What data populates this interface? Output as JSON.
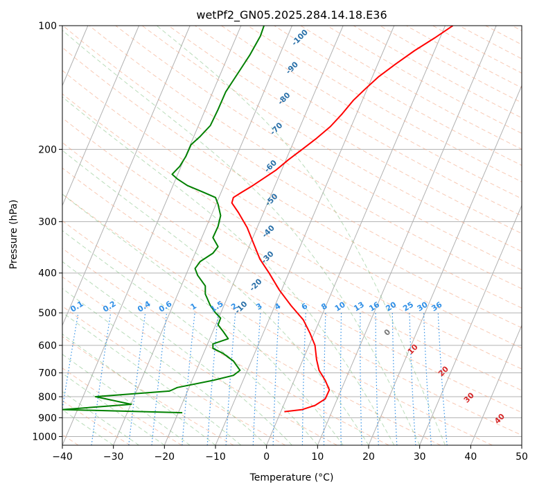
{
  "chart_data": {
    "type": "line",
    "title": "wetPf2_GN05.2025.284.14.18.E36",
    "xlabel": "Temperature (°C)",
    "ylabel": "Pressure (hPa)",
    "xlim": [
      -40,
      50
    ],
    "ylim": [
      1050,
      100
    ],
    "y_scale": "log",
    "grid": true,
    "x_ticks": [
      -40,
      -30,
      -20,
      -10,
      0,
      10,
      20,
      30,
      40,
      50
    ],
    "x_tick_labels": [
      "−40",
      "−30",
      "−20",
      "−10",
      "0",
      "10",
      "20",
      "30",
      "40",
      "50"
    ],
    "y_ticks": [
      100,
      200,
      300,
      400,
      500,
      600,
      700,
      800,
      900,
      1000
    ],
    "y_tick_labels": [
      "100",
      "200",
      "300",
      "400",
      "500",
      "600",
      "700",
      "800",
      "900",
      "1000"
    ],
    "series": [
      {
        "role": "temperature",
        "color": "#ff0000",
        "points": [
          [
            3.5,
            870
          ],
          [
            7,
            860
          ],
          [
            9.5,
            840
          ],
          [
            11.5,
            810
          ],
          [
            12.3,
            770
          ],
          [
            11.5,
            730
          ],
          [
            10.3,
            690
          ],
          [
            9.8,
            650
          ],
          [
            9.5,
            600
          ],
          [
            8.5,
            560
          ],
          [
            7.2,
            520
          ],
          [
            4.8,
            480
          ],
          [
            2.5,
            440
          ],
          [
            0.5,
            400
          ],
          [
            -1.3,
            370
          ],
          [
            -2.5,
            340
          ],
          [
            -3.8,
            310
          ],
          [
            -5.5,
            285
          ],
          [
            -6.8,
            270
          ],
          [
            -6.5,
            262
          ],
          [
            -5,
            255
          ],
          [
            -2.7,
            245
          ],
          [
            -0.5,
            235
          ],
          [
            1.8,
            225
          ],
          [
            4.3,
            212
          ],
          [
            7,
            200
          ],
          [
            9.8,
            188
          ],
          [
            12.5,
            176
          ],
          [
            14.8,
            164
          ],
          [
            17,
            152
          ],
          [
            19.5,
            142
          ],
          [
            22,
            133
          ],
          [
            25.3,
            124
          ],
          [
            29,
            115
          ],
          [
            33,
            107
          ],
          [
            36.5,
            100
          ]
        ]
      },
      {
        "role": "dewpoint",
        "color": "#008000",
        "points": [
          [
            -16.5,
            875
          ],
          [
            -40,
            860
          ],
          [
            -26.5,
            835
          ],
          [
            -33.5,
            800
          ],
          [
            -19,
            775
          ],
          [
            -17.5,
            760
          ],
          [
            -10.5,
            730
          ],
          [
            -6.5,
            710
          ],
          [
            -5.2,
            690
          ],
          [
            -6.5,
            655
          ],
          [
            -8.5,
            628
          ],
          [
            -10.5,
            610
          ],
          [
            -10.5,
            595
          ],
          [
            -7.5,
            578
          ],
          [
            -8.5,
            555
          ],
          [
            -9.5,
            535
          ],
          [
            -9,
            515
          ],
          [
            -10,
            500
          ],
          [
            -11,
            480
          ],
          [
            -12,
            450
          ],
          [
            -12,
            430
          ],
          [
            -13.5,
            405
          ],
          [
            -14,
            390
          ],
          [
            -13,
            375
          ],
          [
            -10.5,
            358
          ],
          [
            -9.5,
            345
          ],
          [
            -10.5,
            328
          ],
          [
            -9.5,
            308
          ],
          [
            -9,
            290
          ],
          [
            -9.5,
            272
          ],
          [
            -10,
            262
          ],
          [
            -12.5,
            254
          ],
          [
            -15.5,
            245
          ],
          [
            -17.5,
            236
          ],
          [
            -18.5,
            230
          ],
          [
            -17,
            220
          ],
          [
            -15.8,
            208
          ],
          [
            -14.8,
            195
          ],
          [
            -13,
            186
          ],
          [
            -11,
            175
          ],
          [
            -9.5,
            160
          ],
          [
            -8,
            145
          ],
          [
            -5.5,
            130
          ],
          [
            -3.3,
            118
          ],
          [
            -1.2,
            106
          ],
          [
            -0.5,
            100
          ]
        ]
      }
    ],
    "mixing_ratio_labels": [
      "0.1",
      "0.2",
      "0.4",
      "0.6",
      "1",
      "1.5",
      "2",
      "3",
      "4",
      "6",
      "8",
      "10",
      "13",
      "16",
      "20",
      "25",
      "30",
      "36"
    ],
    "dry_adiabat_labels": [
      "-100",
      "-90",
      "-80",
      "-70",
      "-60",
      "-50",
      "-40",
      "-30",
      "-20",
      "-10"
    ],
    "moist_adiabat_labels": [
      "0",
      "10",
      "20",
      "30",
      "40"
    ]
  }
}
